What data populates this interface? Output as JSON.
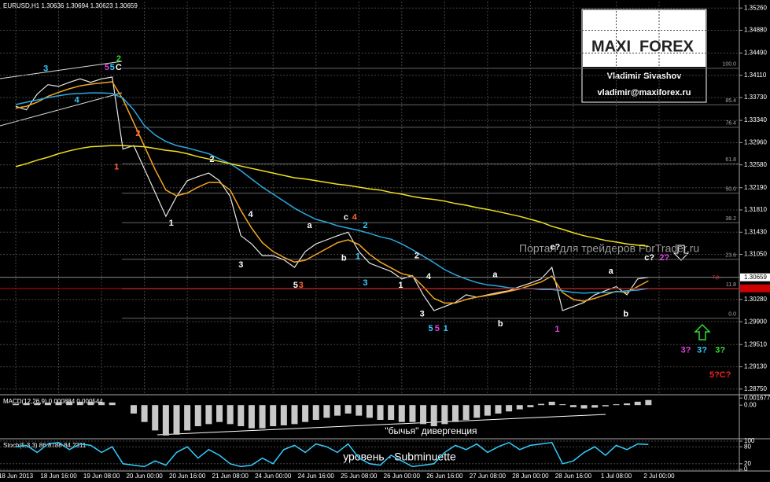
{
  "chart_data": [
    {
      "type": "line",
      "title": "EURUSD,H1 1.30636 1.30694 1.30623 1.30659",
      "categories": [
        "18 Jun 2013",
        null,
        null,
        null,
        "18 Jun 16:00",
        null,
        null,
        null,
        "19 Jun 08:00",
        null,
        null,
        null,
        "20 Jun 00:00",
        null,
        null,
        null,
        "20 Jun 16:00",
        null,
        null,
        null,
        "21 Jun 08:00",
        null,
        null,
        null,
        "24 Jun 00:00",
        null,
        null,
        null,
        "24 Jun 16:00",
        null,
        null,
        null,
        "25 Jun 08:00",
        null,
        null,
        null,
        "26 Jun 00:00",
        null,
        null,
        null,
        "26 Jun 16:00",
        null,
        null,
        null,
        "27 Jun 08:00",
        null,
        null,
        null,
        "28 Jun 00:00",
        null,
        null,
        null,
        "28 Jun 16:00",
        null,
        null,
        null,
        "1 Jul 08:00",
        null,
        null,
        null,
        "2 Jul 00:00"
      ],
      "series": [
        {
          "color": "#e8e8e8",
          "values": [
            1.3358,
            1.3352,
            1.3379,
            1.3395,
            1.3392,
            1.3399,
            1.3405,
            1.3399,
            1.3405,
            1.3408,
            1.3285,
            1.3291,
            1.3251,
            1.3211,
            1.317,
            1.3204,
            1.3231,
            1.3238,
            1.3244,
            1.3231,
            1.3204,
            1.3137,
            1.3123,
            1.3103,
            1.3103,
            1.3096,
            1.3083,
            1.311,
            1.3123,
            1.313,
            1.3137,
            1.3143,
            1.311,
            1.309,
            1.3083,
            1.3076,
            1.3063,
            1.3069,
            1.3036,
            1.3009,
            1.3016,
            1.3023,
            1.3036,
            1.3032,
            1.3036,
            1.304,
            1.3043,
            1.305,
            1.3056,
            1.3063,
            1.3083,
            1.3009,
            1.3016,
            1.3023,
            1.3036,
            1.3043,
            1.305,
            1.3036,
            1.3063,
            1.3066,
            null
          ]
        },
        {
          "color": "#f5a623",
          "values": [
            1.3355,
            1.3358,
            1.3365,
            1.3375,
            1.3382,
            1.3388,
            1.3393,
            1.3396,
            1.3398,
            1.34,
            1.337,
            1.333,
            1.329,
            1.325,
            1.3215,
            1.3205,
            1.321,
            1.322,
            1.3228,
            1.3228,
            1.3215,
            1.318,
            1.315,
            1.3125,
            1.311,
            1.31,
            1.3092,
            1.3095,
            1.3105,
            1.3115,
            1.3125,
            1.313,
            1.3122,
            1.3105,
            1.3092,
            1.3082,
            1.3072,
            1.3068,
            1.305,
            1.303,
            1.3022,
            1.3022,
            1.3028,
            1.3032,
            1.3035,
            1.3038,
            1.3042,
            1.3046,
            1.3052,
            1.3058,
            1.3068,
            1.304,
            1.3028,
            1.3025,
            1.303,
            1.3036,
            1.3042,
            1.304,
            1.305,
            1.306,
            null
          ]
        },
        {
          "color": "#29a8e0",
          "values": [
            1.3361,
            1.3365,
            1.3369,
            1.3373,
            1.3376,
            1.3379,
            1.338,
            1.3381,
            1.3381,
            1.338,
            1.3372,
            1.3352,
            1.3325,
            1.3309,
            1.3298,
            1.3291,
            1.3287,
            1.3282,
            1.3277,
            1.3268,
            1.326,
            1.3248,
            1.3234,
            1.322,
            1.3208,
            1.3196,
            1.3184,
            1.3174,
            1.3165,
            1.316,
            1.3154,
            1.315,
            1.3146,
            1.3141,
            1.3135,
            1.3131,
            1.3123,
            1.3113,
            1.3102,
            1.3091,
            1.3079,
            1.307,
            1.3063,
            1.3057,
            1.3053,
            1.3051,
            1.3048,
            1.3047,
            1.3047,
            1.3045,
            1.3045,
            1.3043,
            1.304,
            1.3039,
            1.304,
            1.304,
            1.3041,
            1.3043,
            1.3044,
            1.3047,
            null
          ]
        },
        {
          "color": "#f0e020",
          "values": [
            1.3255,
            1.326,
            1.3266,
            1.3271,
            1.3277,
            1.3282,
            1.3286,
            1.3289,
            1.329,
            1.3291,
            1.3291,
            1.329,
            1.3289,
            1.3286,
            1.3283,
            1.3281,
            1.3277,
            1.3272,
            1.3268,
            1.3264,
            1.326,
            1.3256,
            1.3252,
            1.3248,
            1.3244,
            1.324,
            1.3236,
            1.3234,
            1.3231,
            1.3228,
            1.3225,
            1.3223,
            1.322,
            1.3217,
            1.3215,
            1.3211,
            1.3208,
            1.3204,
            1.3201,
            1.3199,
            1.3196,
            1.3192,
            1.3189,
            1.3185,
            1.3182,
            1.3178,
            1.3174,
            1.317,
            1.3165,
            1.316,
            1.3153,
            1.3148,
            1.3142,
            1.3137,
            1.3133,
            1.3129,
            1.3126,
            1.3123,
            1.3121,
            1.3119,
            null
          ]
        }
      ],
      "ylim": [
        1.2868,
        1.3537
      ],
      "yticks": [
        {
          "value": 1.3526,
          "label": "1.35260"
        },
        {
          "value": 1.3488,
          "label": "1.34880"
        },
        {
          "value": 1.3449,
          "label": "1.34490"
        },
        {
          "value": 1.3411,
          "label": "1.34110"
        },
        {
          "value": 1.3373,
          "label": "1.33730"
        },
        {
          "value": 1.3334,
          "label": "1.33340"
        },
        {
          "value": 1.3296,
          "label": "1.32960"
        },
        {
          "value": 1.3258,
          "label": "1.32580"
        },
        {
          "value": 1.3219,
          "label": "1.32190"
        },
        {
          "value": 1.3181,
          "label": "1.31810"
        },
        {
          "value": 1.3143,
          "label": "1.31430"
        },
        {
          "value": 1.3105,
          "label": "1.31050"
        },
        {
          "value": 1.3028,
          "label": "1.30280"
        },
        {
          "value": 1.299,
          "label": "1.29900"
        },
        {
          "value": 1.2951,
          "label": "1.29510"
        },
        {
          "value": 1.2913,
          "label": "1.29130"
        },
        {
          "value": 1.2875,
          "label": "1.28750"
        }
      ],
      "grid": true,
      "last_price": 1.30659,
      "tp_level": 1.3047,
      "tp_label": "т.р.",
      "fibonacci": {
        "range": [
          1.2996,
          1.3423
        ],
        "levels": [
          {
            "value": 100,
            "label": "100.0"
          },
          {
            "value": 85.4,
            "label": "85.4"
          },
          {
            "value": 76.4,
            "label": "76.4"
          },
          {
            "value": 61.8,
            "label": "61.8"
          },
          {
            "value": 50,
            "label": "50.0"
          },
          {
            "value": 38.2,
            "label": "38.2"
          },
          {
            "value": 23.6,
            "label": "23.6"
          },
          {
            "value": 11.8,
            "label": "11.8"
          },
          {
            "value": 0,
            "label": "0.0"
          }
        ]
      },
      "wave_labels": [
        {
          "text": "3",
          "color": "#33ccff",
          "i": 2.8,
          "price": 1.3422
        },
        {
          "text": "4",
          "color": "#33ccff",
          "i": 5.7,
          "price": 1.3368
        },
        {
          "text": "5",
          "color": "#e040e0",
          "i": 8.5,
          "price": 1.3424
        },
        {
          "text": "5",
          "color": "#33ccff",
          "i": 9.0,
          "price": 1.3424
        },
        {
          "text": "C",
          "color": "#ffffff",
          "i": 9.6,
          "price": 1.3424
        },
        {
          "text": "2",
          "color": "#33dd33",
          "i": 9.6,
          "price": 1.3439
        },
        {
          "text": "1",
          "color": "#ff6633",
          "i": 9.4,
          "price": 1.3254
        },
        {
          "text": "2",
          "color": "#ff6633",
          "i": 11.4,
          "price": 1.3311
        },
        {
          "text": "1",
          "color": "#ffffff",
          "i": 14.5,
          "price": 1.3158
        },
        {
          "text": "2",
          "color": "#ffffff",
          "i": 18.3,
          "price": 1.3267
        },
        {
          "text": "3",
          "color": "#ffffff",
          "i": 21.0,
          "price": 1.3087
        },
        {
          "text": "4",
          "color": "#ffffff",
          "i": 21.9,
          "price": 1.3173
        },
        {
          "text": "5",
          "color": "#ffffff",
          "i": 26.1,
          "price": 1.3052
        },
        {
          "text": "3",
          "color": "#ff6633",
          "i": 26.6,
          "price": 1.3052
        },
        {
          "text": "a",
          "color": "#ffffff",
          "i": 27.4,
          "price": 1.3154
        },
        {
          "text": "b",
          "color": "#ffffff",
          "i": 30.6,
          "price": 1.3098
        },
        {
          "text": "c",
          "color": "#ffffff",
          "i": 30.8,
          "price": 1.3168
        },
        {
          "text": "4",
          "color": "#ff6633",
          "i": 31.6,
          "price": 1.3168
        },
        {
          "text": "1",
          "color": "#33ccff",
          "i": 31.9,
          "price": 1.3101
        },
        {
          "text": "2",
          "color": "#33ccff",
          "i": 32.6,
          "price": 1.3154
        },
        {
          "text": "3",
          "color": "#33ccff",
          "i": 32.6,
          "price": 1.3056
        },
        {
          "text": "1",
          "color": "#ffffff",
          "i": 35.9,
          "price": 1.3052
        },
        {
          "text": "2",
          "color": "#ffffff",
          "i": 37.4,
          "price": 1.3102
        },
        {
          "text": "3",
          "color": "#ffffff",
          "i": 37.9,
          "price": 1.3003
        },
        {
          "text": "4",
          "color": "#ffffff",
          "i": 38.5,
          "price": 1.3067
        },
        {
          "text": "5",
          "color": "#33ccff",
          "i": 38.7,
          "price": 1.2978
        },
        {
          "text": "5",
          "color": "#e040e0",
          "i": 39.3,
          "price": 1.2978
        },
        {
          "text": "1",
          "color": "#33ccff",
          "i": 40.1,
          "price": 1.2978
        },
        {
          "text": "a",
          "color": "#ffffff",
          "i": 44.7,
          "price": 1.307
        },
        {
          "text": "b",
          "color": "#ffffff",
          "i": 45.2,
          "price": 1.2986
        },
        {
          "text": "c?",
          "color": "#ffffff",
          "i": 50.3,
          "price": 1.3117
        },
        {
          "text": "1",
          "color": "#e040e0",
          "i": 50.5,
          "price": 1.2977
        },
        {
          "text": "a",
          "color": "#ffffff",
          "i": 55.5,
          "price": 1.3076
        },
        {
          "text": "b",
          "color": "#ffffff",
          "i": 56.9,
          "price": 1.3003
        },
        {
          "text": "c?",
          "color": "#ffffff",
          "i": 59.1,
          "price": 1.3099
        },
        {
          "text": "2?",
          "color": "#e040e0",
          "i": 60.5,
          "price": 1.3099
        },
        {
          "text": "3?",
          "color": "#e040e0",
          "i": 62.5,
          "price": 1.2941
        },
        {
          "text": "3?",
          "color": "#33ccff",
          "i": 64.0,
          "price": 1.2941
        },
        {
          "text": "3?",
          "color": "#33dd33",
          "i": 65.7,
          "price": 1.2941
        },
        {
          "text": "5?C?",
          "color": "#ee2222",
          "i": 65.7,
          "price": 1.2899
        }
      ]
    },
    {
      "type": "bar",
      "title": "MACD(12,26,9) 0.000884 0.000544",
      "color": "#c8c8c8",
      "values": [
        0.0003,
        0.0004,
        0.0005,
        0.0006,
        0.0007,
        0.0008,
        0.0008,
        0.0008,
        0.0007,
        0.0006,
        0,
        -0.002,
        -0.004,
        -0.006,
        -0.0072,
        -0.007,
        -0.006,
        -0.005,
        -0.0045,
        -0.004,
        -0.0045,
        -0.005,
        -0.0055,
        -0.0055,
        -0.005,
        -0.0048,
        -0.0045,
        -0.004,
        -0.0035,
        -0.003,
        -0.0025,
        -0.002,
        -0.0025,
        -0.003,
        -0.0035,
        -0.0035,
        -0.004,
        -0.004,
        -0.0045,
        -0.005,
        -0.0045,
        -0.004,
        -0.0035,
        -0.003,
        -0.0025,
        -0.002,
        -0.0015,
        -0.001,
        -0.0005,
        0.0003,
        0.0008,
        0.0002,
        -0.0005,
        -0.0008,
        -0.0006,
        -0.0003,
        0.0002,
        0.0004,
        0.0008,
        0.0012,
        null
      ],
      "ylim": [
        -0.0076,
        0.0019
      ],
      "yticks": [
        0.001677,
        {
          "value": 0,
          "label": "0.00"
        }
      ],
      "grid": false,
      "annotation": "\"бычья\" дивергенция"
    },
    {
      "type": "line",
      "title": "Stoch(5,3,3) 86.8788 84.2311",
      "series": [
        {
          "color": "#33ccff",
          "values": [
            80,
            85,
            60,
            90,
            95,
            70,
            90,
            85,
            60,
            80,
            20,
            15,
            10,
            30,
            15,
            60,
            80,
            40,
            70,
            50,
            20,
            10,
            15,
            40,
            20,
            70,
            85,
            60,
            90,
            80,
            60,
            90,
            40,
            20,
            15,
            50,
            30,
            10,
            15,
            20,
            60,
            85,
            70,
            90,
            60,
            80,
            95,
            70,
            85,
            90,
            95,
            20,
            30,
            60,
            80,
            50,
            85,
            70,
            90,
            88,
            null
          ]
        }
      ],
      "ylim": [
        0,
        100
      ],
      "yticks": [
        0,
        20,
        80,
        100
      ],
      "grid": true,
      "annotation": "уровень - Subminuette"
    }
  ],
  "branding": {
    "logo_left": "MAXI",
    "logo_right": "FOREX",
    "author": "Vladimir Sivashov",
    "email": "vladimir@maxiforex.ru",
    "watermark": "Портал для трейдеров ForTrader.ru"
  }
}
